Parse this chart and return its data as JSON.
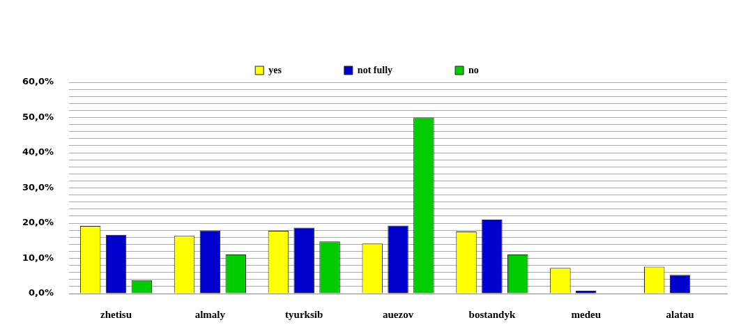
{
  "chart_data": {
    "type": "bar",
    "categories": [
      "zhetisu",
      "almaly",
      "tyurksib",
      "auezov",
      "bostandyk",
      "medeu",
      "alatau"
    ],
    "series": [
      {
        "name": "yes",
        "color": "#ffff00",
        "values": [
          19.2,
          16.4,
          17.8,
          14.2,
          17.6,
          7.3,
          7.6
        ]
      },
      {
        "name": "not fully",
        "color": "#0000cc",
        "values": [
          16.7,
          17.9,
          18.7,
          19.3,
          21.0,
          0.8,
          5.3
        ]
      },
      {
        "name": "no",
        "color": "#00cc00",
        "values": [
          3.8,
          11.1,
          14.8,
          50.0,
          11.1,
          0,
          null
        ]
      }
    ],
    "ylim": [
      0,
      60
    ],
    "yticks": [
      {
        "value": 0,
        "label": "0,0%"
      },
      {
        "value": 2,
        "label": null
      },
      {
        "value": 4,
        "label": null
      },
      {
        "value": 6,
        "label": null
      },
      {
        "value": 8,
        "label": null
      },
      {
        "value": 10,
        "label": "10,0%"
      },
      {
        "value": 12,
        "label": null
      },
      {
        "value": 14,
        "label": null
      },
      {
        "value": 16,
        "label": null
      },
      {
        "value": 18,
        "label": null
      },
      {
        "value": 20,
        "label": "20,0%"
      },
      {
        "value": 22,
        "label": null
      },
      {
        "value": 24,
        "label": null
      },
      {
        "value": 26,
        "label": null
      },
      {
        "value": 28,
        "label": null
      },
      {
        "value": 30,
        "label": "30,0%"
      },
      {
        "value": 32,
        "label": null
      },
      {
        "value": 34,
        "label": null
      },
      {
        "value": 36,
        "label": null
      },
      {
        "value": 38,
        "label": null
      },
      {
        "value": 40,
        "label": "40,0%"
      },
      {
        "value": 42,
        "label": null
      },
      {
        "value": 44,
        "label": null
      },
      {
        "value": 46,
        "label": null
      },
      {
        "value": 48,
        "label": null
      },
      {
        "value": 50,
        "label": "50,0%"
      },
      {
        "value": 52,
        "label": null
      },
      {
        "value": 54,
        "label": null
      },
      {
        "value": 56,
        "label": null
      },
      {
        "value": 58,
        "label": null
      },
      {
        "value": 60,
        "label": "60,0%"
      }
    ],
    "grid": "y",
    "legend": "top"
  }
}
